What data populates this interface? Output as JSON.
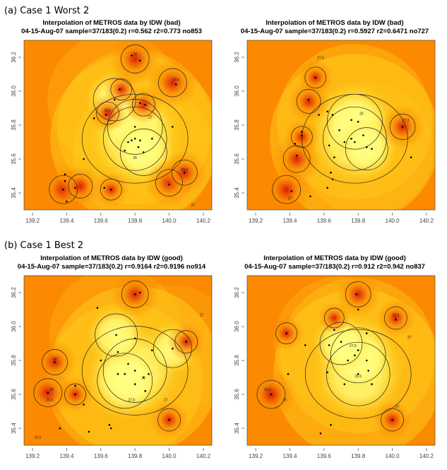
{
  "figure": {
    "section_a_label": "(a) Case 1 Worst 2",
    "section_b_label": "(b) Case 1 Best 2"
  },
  "chart_data": [
    {
      "type": "heatmap",
      "title": "Interpolation of METROS data by IDW (bad)",
      "subtitle": "04-15-Aug-07 sample=37/183(0.2) r=0.562 r2=0.773 no853",
      "xlabel": "",
      "ylabel": "",
      "xlim": [
        139.15,
        140.25
      ],
      "ylim": [
        35.3,
        36.3
      ],
      "x_ticks": [
        "139.2",
        "139.4",
        "139.6",
        "139.8",
        "140.0",
        "140.2"
      ],
      "y_ticks": [
        "35.4",
        "35.6",
        "35.8",
        "36.0",
        "36.2"
      ],
      "colormap": [
        "#ffff80",
        "#ffd21f",
        "#fb8a00",
        "#d8130a"
      ],
      "hot_spots": [
        {
          "x": 139.38,
          "y": 35.42,
          "v": 1.0
        },
        {
          "x": 139.48,
          "y": 35.44,
          "v": 0.7
        },
        {
          "x": 139.64,
          "y": 35.87,
          "v": 0.6
        },
        {
          "x": 139.8,
          "y": 36.19,
          "v": 1.0
        },
        {
          "x": 140.02,
          "y": 36.05,
          "v": 1.0
        },
        {
          "x": 140.0,
          "y": 35.46,
          "v": 0.9
        },
        {
          "x": 140.09,
          "y": 35.52,
          "v": 0.8
        },
        {
          "x": 139.66,
          "y": 35.42,
          "v": 0.5
        },
        {
          "x": 139.85,
          "y": 35.92,
          "v": 0.6
        },
        {
          "x": 139.72,
          "y": 36.01,
          "v": 0.5
        }
      ],
      "cool_spots": [
        {
          "x": 139.8,
          "y": 35.72,
          "v": 1.0
        },
        {
          "x": 139.8,
          "y": 35.79,
          "v": 0.8
        },
        {
          "x": 139.85,
          "y": 35.64,
          "v": 0.6
        },
        {
          "x": 139.68,
          "y": 35.95,
          "v": 0.5
        }
      ],
      "stations": [
        [
          139.39,
          35.47
        ],
        [
          139.39,
          35.51
        ],
        [
          139.4,
          35.35
        ],
        [
          139.45,
          35.43
        ],
        [
          139.38,
          35.42
        ],
        [
          139.62,
          35.43
        ],
        [
          139.66,
          35.42
        ],
        [
          139.63,
          35.86
        ],
        [
          139.56,
          35.84
        ],
        [
          139.68,
          35.95
        ],
        [
          139.8,
          35.79
        ],
        [
          139.8,
          35.72
        ],
        [
          139.78,
          35.71
        ],
        [
          139.83,
          35.71
        ],
        [
          139.76,
          35.7
        ],
        [
          139.85,
          35.64
        ],
        [
          139.82,
          35.67
        ],
        [
          139.9,
          35.72
        ],
        [
          139.86,
          35.92
        ],
        [
          139.83,
          35.93
        ],
        [
          139.78,
          36.21
        ],
        [
          139.83,
          36.18
        ],
        [
          140.04,
          36.04
        ],
        [
          140.09,
          35.52
        ],
        [
          140.0,
          35.45
        ],
        [
          140.02,
          35.79
        ],
        [
          139.71,
          36.01
        ],
        [
          139.74,
          35.65
        ],
        [
          139.5,
          35.6
        ]
      ],
      "contour_labels": [
        {
          "text": "27",
          "x": 139.89,
          "y": 35.84
        },
        {
          "text": "26",
          "x": 139.8,
          "y": 35.6
        },
        {
          "text": "28",
          "x": 139.8,
          "y": 36.21
        },
        {
          "text": "28.5",
          "x": 139.64,
          "y": 35.88
        },
        {
          "text": "28.5",
          "x": 140.04,
          "y": 36.06
        },
        {
          "text": "28.5",
          "x": 140.09,
          "y": 35.53
        },
        {
          "text": "27",
          "x": 140.14,
          "y": 35.32
        }
      ]
    },
    {
      "type": "heatmap",
      "title": "Interpolation of METROS data by IDW (bad)",
      "subtitle": "04-15-Aug-07 sample=37/183(0.2) r=0.5927 r2=0.6471 no727",
      "xlabel": "",
      "ylabel": "",
      "xlim": [
        139.15,
        140.25
      ],
      "ylim": [
        35.3,
        36.3
      ],
      "x_ticks": [
        "139.2",
        "139.4",
        "139.6",
        "139.8",
        "140.0",
        "140.2"
      ],
      "y_ticks": [
        "35.4",
        "35.6",
        "35.8",
        "36.0",
        "36.2"
      ],
      "colormap": [
        "#ffff80",
        "#ffd21f",
        "#fb8a00",
        "#d8130a"
      ],
      "hot_spots": [
        {
          "x": 139.38,
          "y": 35.42,
          "v": 1.0
        },
        {
          "x": 139.44,
          "y": 35.6,
          "v": 0.9
        },
        {
          "x": 139.51,
          "y": 35.94,
          "v": 0.7
        },
        {
          "x": 140.06,
          "y": 35.79,
          "v": 0.8
        },
        {
          "x": 139.55,
          "y": 36.08,
          "v": 0.5
        },
        {
          "x": 139.47,
          "y": 35.73,
          "v": 0.5
        }
      ],
      "cool_spots": [
        {
          "x": 139.78,
          "y": 35.72,
          "v": 1.0
        },
        {
          "x": 139.78,
          "y": 35.82,
          "v": 0.8
        },
        {
          "x": 139.85,
          "y": 35.66,
          "v": 0.5
        }
      ],
      "stations": [
        [
          139.52,
          35.38
        ],
        [
          139.41,
          35.41
        ],
        [
          139.44,
          35.62
        ],
        [
          139.43,
          35.69
        ],
        [
          139.47,
          35.74
        ],
        [
          139.51,
          35.95
        ],
        [
          139.55,
          36.08
        ],
        [
          139.57,
          35.86
        ],
        [
          139.63,
          35.68
        ],
        [
          139.66,
          35.61
        ],
        [
          139.64,
          35.52
        ],
        [
          139.65,
          35.48
        ],
        [
          139.72,
          35.7
        ],
        [
          139.76,
          35.72
        ],
        [
          139.76,
          35.83
        ],
        [
          139.8,
          35.82
        ],
        [
          139.83,
          35.74
        ],
        [
          139.85,
          35.67
        ],
        [
          139.88,
          35.66
        ],
        [
          139.78,
          35.7
        ],
        [
          139.65,
          35.86
        ],
        [
          139.62,
          35.88
        ],
        [
          140.06,
          35.79
        ],
        [
          140.11,
          35.61
        ],
        [
          139.62,
          35.43
        ],
        [
          139.47,
          35.76
        ],
        [
          139.69,
          35.77
        ]
      ],
      "contour_labels": [
        {
          "text": "27.5",
          "x": 139.58,
          "y": 36.19
        },
        {
          "text": "26",
          "x": 139.82,
          "y": 35.86
        },
        {
          "text": "27.5",
          "x": 140.08,
          "y": 35.82
        },
        {
          "text": "27",
          "x": 139.4,
          "y": 35.36
        }
      ]
    },
    {
      "type": "heatmap",
      "title": "Interpolation of METROS data by IDW (good)",
      "subtitle": "04-15-Aug-07 sample=37/183(0.2) r=0.9164 r2=0.9196 no914",
      "xlabel": "",
      "ylabel": "",
      "xlim": [
        139.15,
        140.25
      ],
      "ylim": [
        35.3,
        36.3
      ],
      "x_ticks": [
        "139.2",
        "139.4",
        "139.6",
        "139.8",
        "140.0",
        "140.2"
      ],
      "y_ticks": [
        "35.4",
        "35.6",
        "35.8",
        "36.0",
        "36.2"
      ],
      "colormap": [
        "#ffff80",
        "#ffd21f",
        "#fb8a00",
        "#d8130a"
      ],
      "hot_spots": [
        {
          "x": 139.29,
          "y": 35.61,
          "v": 1.0
        },
        {
          "x": 139.33,
          "y": 35.79,
          "v": 0.8
        },
        {
          "x": 139.8,
          "y": 36.19,
          "v": 0.9
        },
        {
          "x": 140.0,
          "y": 35.45,
          "v": 0.6
        },
        {
          "x": 140.1,
          "y": 35.91,
          "v": 0.6
        },
        {
          "x": 139.45,
          "y": 35.6,
          "v": 0.5
        }
      ],
      "cool_spots": [
        {
          "x": 139.8,
          "y": 35.74,
          "v": 1.0
        },
        {
          "x": 139.74,
          "y": 35.68,
          "v": 0.8
        },
        {
          "x": 139.69,
          "y": 35.95,
          "v": 0.5
        },
        {
          "x": 140.02,
          "y": 35.87,
          "v": 0.4
        }
      ],
      "stations": [
        [
          139.29,
          35.61
        ],
        [
          139.33,
          35.79
        ],
        [
          139.36,
          35.4
        ],
        [
          139.45,
          35.6
        ],
        [
          139.5,
          35.54
        ],
        [
          139.53,
          35.38
        ],
        [
          139.58,
          36.11
        ],
        [
          139.6,
          35.8
        ],
        [
          139.65,
          35.42
        ],
        [
          139.66,
          35.4
        ],
        [
          139.69,
          35.95
        ],
        [
          139.7,
          35.85
        ],
        [
          139.7,
          35.72
        ],
        [
          139.76,
          35.78
        ],
        [
          139.8,
          35.74
        ],
        [
          139.8,
          35.66
        ],
        [
          139.85,
          35.7
        ],
        [
          139.86,
          35.62
        ],
        [
          139.88,
          35.72
        ],
        [
          139.9,
          35.86
        ],
        [
          139.8,
          36.19
        ],
        [
          139.83,
          36.2
        ],
        [
          140.0,
          35.45
        ],
        [
          140.02,
          35.87
        ],
        [
          140.1,
          35.91
        ],
        [
          139.74,
          35.72
        ],
        [
          139.8,
          35.93
        ],
        [
          139.45,
          35.65
        ]
      ],
      "contour_labels": [
        {
          "text": "28",
          "x": 139.31,
          "y": 35.62
        },
        {
          "text": "26.5",
          "x": 139.3,
          "y": 35.56
        },
        {
          "text": "28",
          "x": 139.33,
          "y": 35.8
        },
        {
          "text": "27",
          "x": 140.19,
          "y": 36.06
        },
        {
          "text": "27.5",
          "x": 139.78,
          "y": 35.56
        },
        {
          "text": "26",
          "x": 139.85,
          "y": 35.69
        },
        {
          "text": "27",
          "x": 139.98,
          "y": 35.56
        },
        {
          "text": "26.5",
          "x": 139.23,
          "y": 35.34
        }
      ]
    },
    {
      "type": "heatmap",
      "title": "Interpolation of METROS data by IDW (good)",
      "subtitle": "04-15-Aug-07 sample=37/183(0.2) r=0.912 r2=0.942 no837",
      "xlabel": "",
      "ylabel": "",
      "xlim": [
        139.15,
        140.25
      ],
      "ylim": [
        35.3,
        36.3
      ],
      "x_ticks": [
        "139.2",
        "139.4",
        "139.6",
        "139.8",
        "140.0",
        "140.2"
      ],
      "y_ticks": [
        "35.4",
        "35.6",
        "35.8",
        "36.0",
        "36.2"
      ],
      "colormap": [
        "#ffff80",
        "#ffd21f",
        "#fb8a00",
        "#d8130a"
      ],
      "hot_spots": [
        {
          "x": 139.29,
          "y": 35.6,
          "v": 1.0
        },
        {
          "x": 139.8,
          "y": 36.19,
          "v": 0.8
        },
        {
          "x": 140.02,
          "y": 36.05,
          "v": 0.6
        },
        {
          "x": 140.0,
          "y": 35.45,
          "v": 0.6
        },
        {
          "x": 139.38,
          "y": 35.96,
          "v": 0.5
        },
        {
          "x": 139.66,
          "y": 36.05,
          "v": 0.4
        }
      ],
      "cool_spots": [
        {
          "x": 139.8,
          "y": 35.72,
          "v": 1.0
        },
        {
          "x": 139.8,
          "y": 35.83,
          "v": 0.8
        },
        {
          "x": 139.7,
          "y": 35.9,
          "v": 0.5
        }
      ],
      "stations": [
        [
          139.29,
          35.6
        ],
        [
          139.38,
          35.96
        ],
        [
          139.39,
          35.72
        ],
        [
          139.49,
          35.89
        ],
        [
          139.58,
          35.37
        ],
        [
          139.64,
          35.42
        ],
        [
          139.62,
          35.73
        ],
        [
          139.66,
          35.98
        ],
        [
          139.7,
          35.91
        ],
        [
          139.74,
          35.8
        ],
        [
          139.78,
          35.83
        ],
        [
          139.8,
          35.86
        ],
        [
          139.8,
          35.72
        ],
        [
          139.85,
          35.8
        ],
        [
          139.86,
          35.74
        ],
        [
          139.88,
          35.66
        ],
        [
          139.79,
          36.19
        ],
        [
          139.8,
          36.1
        ],
        [
          140.02,
          36.04
        ],
        [
          140.0,
          35.45
        ],
        [
          139.85,
          35.96
        ],
        [
          139.63,
          35.89
        ],
        [
          139.72,
          35.66
        ]
      ],
      "contour_labels": [
        {
          "text": "28.5",
          "x": 139.27,
          "y": 35.62
        },
        {
          "text": "26",
          "x": 139.37,
          "y": 35.56
        },
        {
          "text": "28.5",
          "x": 140.02,
          "y": 36.06
        },
        {
          "text": "27",
          "x": 140.1,
          "y": 35.93
        },
        {
          "text": "27.5",
          "x": 139.77,
          "y": 35.88
        },
        {
          "text": "26.5",
          "x": 139.8,
          "y": 35.7
        },
        {
          "text": "27",
          "x": 140.03,
          "y": 35.52
        }
      ]
    }
  ]
}
